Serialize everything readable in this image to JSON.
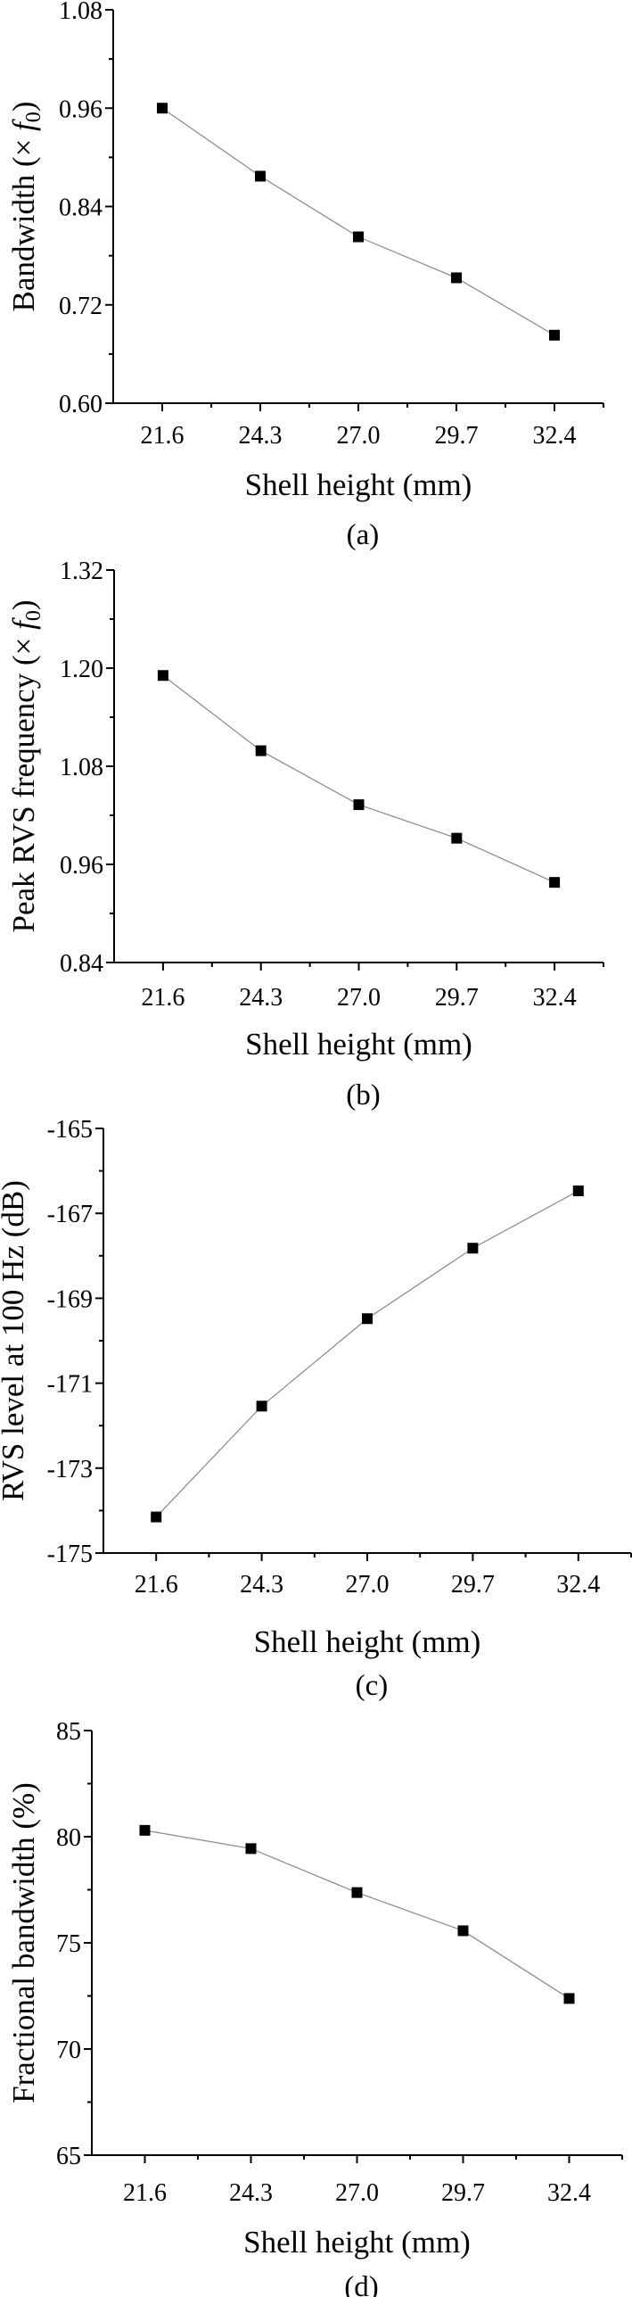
{
  "chart_data": [
    {
      "type": "line",
      "caption": "(a)",
      "xlabel": "Shell height (mm)",
      "ylabel": {
        "text": "Bandwidth (× ",
        "italic": "f",
        "sub": "0",
        "close": ")"
      },
      "x": [
        21.6,
        24.3,
        27.0,
        29.7,
        32.4
      ],
      "y": [
        0.96,
        0.877,
        0.803,
        0.753,
        0.683
      ],
      "xticks": [
        "21.6",
        "24.3",
        "27.0",
        "29.7",
        "32.4"
      ],
      "yticks": [
        "0.60",
        "0.72",
        "0.84",
        "0.96",
        "1.08"
      ],
      "xlim": [
        20.25,
        33.75
      ],
      "ylim": [
        0.6,
        1.08
      ],
      "marker": "square",
      "line_color": "#888888",
      "marker_color": "#000000",
      "grid": false
    },
    {
      "type": "line",
      "caption": "(b)",
      "xlabel": "Shell height (mm)",
      "ylabel": {
        "text": "Peak RVS frequency (× ",
        "italic": "f",
        "sub": "0",
        "close": ")"
      },
      "x": [
        21.6,
        24.3,
        27.0,
        29.7,
        32.4
      ],
      "y": [
        1.191,
        1.099,
        1.033,
        0.992,
        0.938
      ],
      "xticks": [
        "21.6",
        "24.3",
        "27.0",
        "29.7",
        "32.4"
      ],
      "yticks": [
        "0.84",
        "0.96",
        "1.08",
        "1.20",
        "1.32"
      ],
      "xlim": [
        20.25,
        33.75
      ],
      "ylim": [
        0.84,
        1.32
      ],
      "marker": "square",
      "line_color": "#888888",
      "marker_color": "#000000",
      "grid": false
    },
    {
      "type": "line",
      "caption": "(c)",
      "xlabel": "Shell height (mm)",
      "ylabel": {
        "text": "RVS level at 100 Hz (dB)",
        "italic": "",
        "sub": "",
        "close": ""
      },
      "x": [
        21.6,
        24.3,
        27.0,
        29.7,
        32.4
      ],
      "y": [
        -174.15,
        -171.54,
        -169.48,
        -167.82,
        -166.47
      ],
      "xticks": [
        "21.6",
        "24.3",
        "27.0",
        "29.7",
        "32.4"
      ],
      "yticks": [
        "-175",
        "-173",
        "-171",
        "-169",
        "-167",
        "-165"
      ],
      "xlim": [
        20.25,
        33.75
      ],
      "ylim": [
        -175,
        -165
      ],
      "marker": "square",
      "line_color": "#888888",
      "marker_color": "#000000",
      "grid": false
    },
    {
      "type": "line",
      "caption": "(d)",
      "xlabel": "Shell height (mm)",
      "ylabel": {
        "text": "Fractional bandwidth (%)",
        "italic": "",
        "sub": "",
        "close": ""
      },
      "x": [
        21.6,
        24.3,
        27.0,
        29.7,
        32.4
      ],
      "y": [
        80.3,
        79.44,
        77.37,
        75.57,
        72.38
      ],
      "xticks": [
        "21.6",
        "24.3",
        "27.0",
        "29.7",
        "32.4"
      ],
      "yticks": [
        "65",
        "70",
        "75",
        "80",
        "85"
      ],
      "xlim": [
        20.25,
        33.75
      ],
      "ylim": [
        65,
        85
      ],
      "marker": "square",
      "line_color": "#888888",
      "marker_color": "#000000",
      "grid": false
    }
  ]
}
